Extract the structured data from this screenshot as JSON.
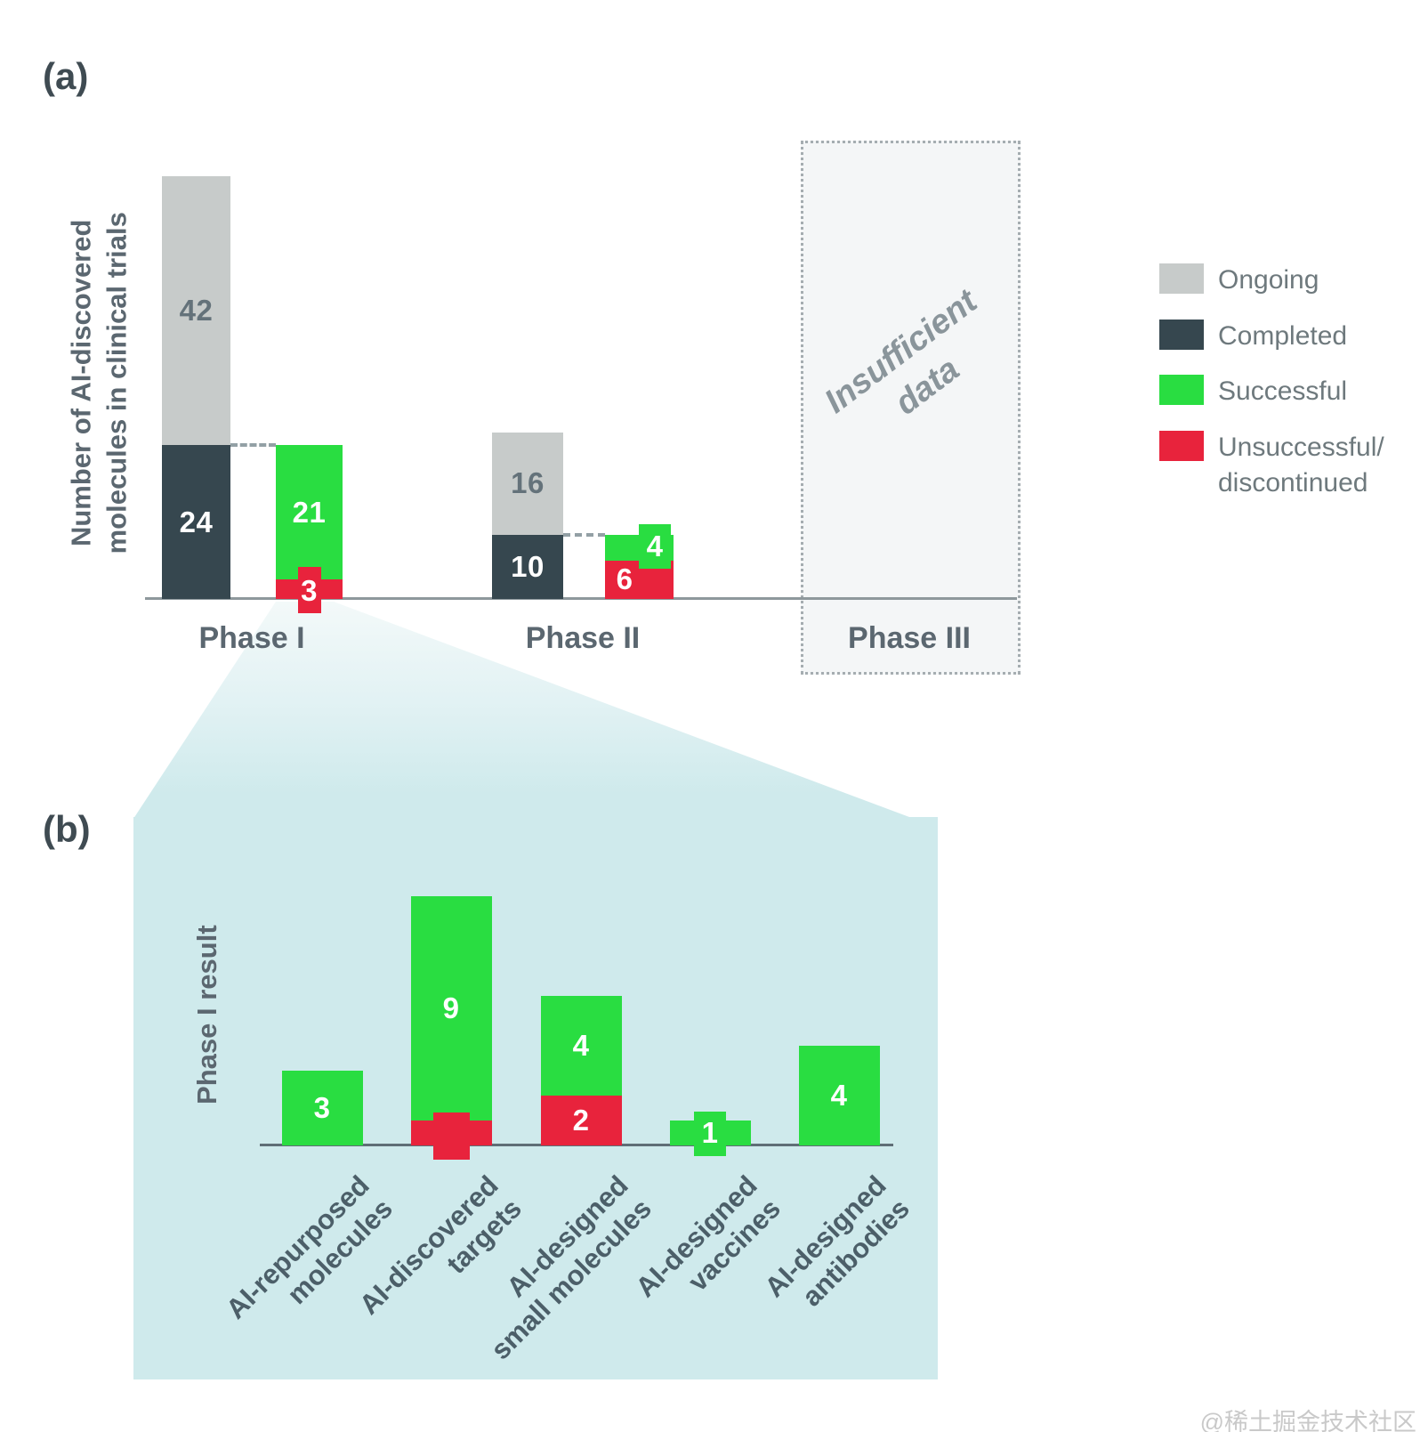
{
  "page": {
    "watermark": "@稀土掘金技术社区"
  },
  "panel_a": {
    "tag": "(a)",
    "ylabel": "Number of AI-discovered\nmolecules in clinical trials",
    "legend": [
      {
        "label": "Ongoing",
        "color": "#c7cbca"
      },
      {
        "label": "Completed",
        "color": "#36474f"
      },
      {
        "label": "Successful",
        "color": "#29dd41"
      },
      {
        "label": "Unsuccessful/\ndiscontinued",
        "color": "#e8233c"
      }
    ],
    "phase3_note": "Insufficient\ndata"
  },
  "panel_b": {
    "tag": "(b)",
    "ylabel": "Phase I result"
  },
  "chart_data": [
    {
      "id": "a",
      "type": "bar",
      "stacked": true,
      "title": "",
      "ylabel": "Number of AI-discovered molecules in clinical trials",
      "categories": [
        "Phase I",
        "Phase II",
        "Phase III"
      ],
      "series": [
        {
          "name": "Ongoing",
          "color": "#c7cbca",
          "values": [
            42,
            16,
            null
          ]
        },
        {
          "name": "Completed",
          "color": "#36474f",
          "values": [
            24,
            10,
            null
          ]
        },
        {
          "name": "Successful",
          "color": "#29dd41",
          "values": [
            21,
            4,
            null
          ]
        },
        {
          "name": "Unsuccessful/discontinued",
          "color": "#e8233c",
          "values": [
            3,
            6,
            null
          ]
        }
      ],
      "annotations": [
        {
          "target": "Phase III",
          "text": "Insufficient data"
        }
      ],
      "legend_position": "right",
      "grid": false
    },
    {
      "id": "b",
      "type": "bar",
      "stacked": true,
      "ylabel": "Phase I result",
      "categories": [
        "AI-repurposed\nmolecules",
        "AI-discovered\ntargets",
        "AI-designed\nsmall molecules",
        "AI-designed\nvaccines",
        "AI-designed\nantibodies"
      ],
      "series": [
        {
          "name": "Successful",
          "color": "#29dd41",
          "values": [
            3,
            9,
            4,
            1,
            4
          ]
        },
        {
          "name": "Unsuccessful/discontinued",
          "color": "#e8233c",
          "values": [
            0,
            1,
            2,
            0,
            0
          ]
        }
      ],
      "grid": false
    }
  ]
}
